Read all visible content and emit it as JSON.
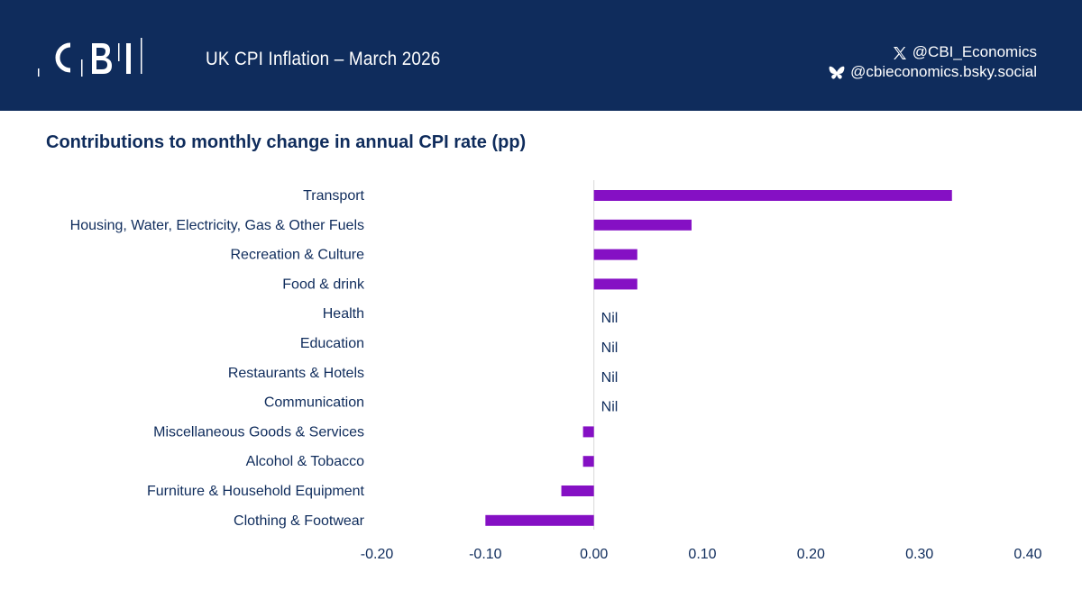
{
  "header": {
    "logo_text": "CBI",
    "title": "UK CPI Inflation – March 2026",
    "social": {
      "x_handle": "@CBI_Economics",
      "bsky_handle": "@cbieconomics.bsky.social",
      "x_icon": "x-logo-icon",
      "bsky_icon": "butterfly-icon"
    }
  },
  "colors": {
    "header_bg": "#0f2c5c",
    "bar": "#8510c4",
    "text": "#0f2c5c"
  },
  "chart_data": {
    "type": "bar",
    "orientation": "horizontal",
    "title": "Contributions to monthly change in annual CPI rate (pp)",
    "categories": [
      "Transport",
      "Housing, Water, Electricity, Gas & Other Fuels",
      "Recreation & Culture",
      "Food & drink",
      "Health",
      "Education",
      "Restaurants & Hotels",
      "Communication",
      "Miscellaneous Goods & Services",
      "Alcohol & Tobacco",
      "Furniture & Household Equipment",
      "Clothing & Footwear"
    ],
    "values": [
      0.33,
      0.09,
      0.04,
      0.04,
      0,
      0,
      0,
      0,
      -0.01,
      -0.01,
      -0.03,
      -0.1
    ],
    "data_labels": [
      "",
      "",
      "",
      "",
      "Nil",
      "Nil",
      "Nil",
      "Nil",
      "",
      "",
      "",
      ""
    ],
    "xlim": [
      -0.2,
      0.4
    ],
    "xticks": [
      "-0.20",
      "-0.10",
      "0.00",
      "0.10",
      "0.20",
      "0.30",
      "0.40"
    ],
    "grid": false,
    "legend": "none"
  }
}
